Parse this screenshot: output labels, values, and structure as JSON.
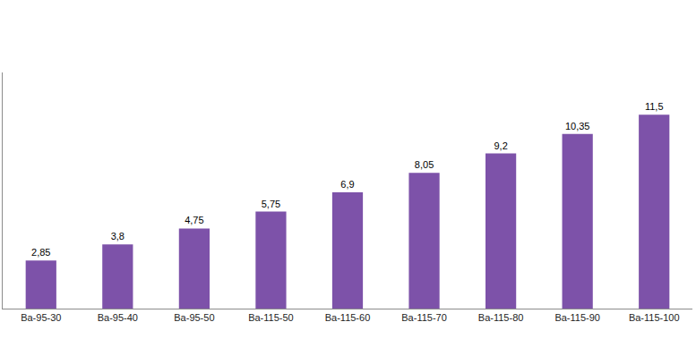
{
  "chart_data": {
    "type": "bar",
    "categories": [
      "Ba-95-30",
      "Ba-95-40",
      "Ba-95-50",
      "Ba-115-50",
      "Ba-115-60",
      "Ba-115-70",
      "Ba-115-80",
      "Ba-115-90",
      "Ba-115-100"
    ],
    "values": [
      2.85,
      3.8,
      4.75,
      5.75,
      6.9,
      8.05,
      9.2,
      10.35,
      11.5
    ],
    "value_labels": [
      "2,85",
      "3,8",
      "4,75",
      "5,75",
      "6,9",
      "8,05",
      "9,2",
      "10,35",
      "11,5"
    ],
    "data_labels": true,
    "color": "#7d52a9",
    "ylim": [
      0,
      14
    ],
    "grid": false,
    "tick_labels": "x"
  }
}
